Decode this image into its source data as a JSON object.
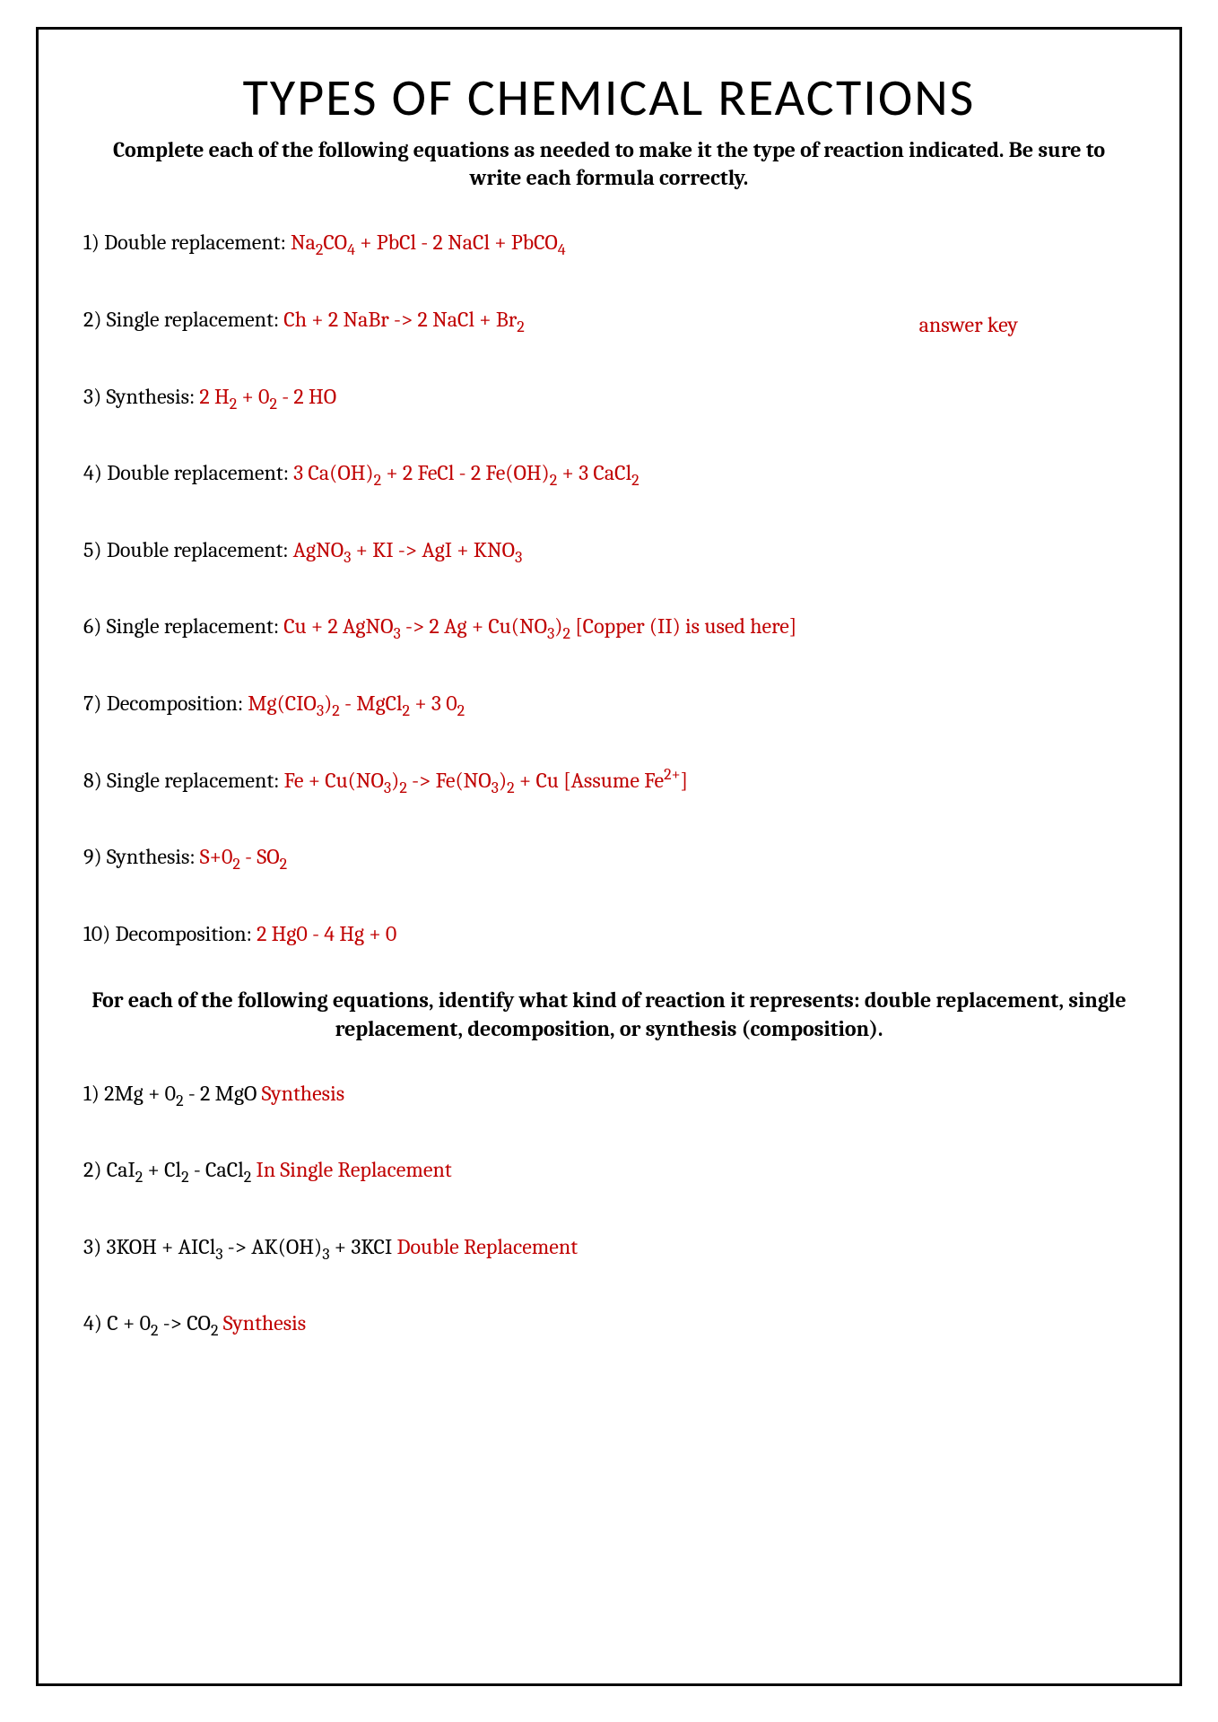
{
  "title": "TYPES OF CHEMICAL REACTIONS",
  "instructions": "Complete each of the following equations as needed to make it the type of reaction indicated.  Be sure to write each formula correctly.",
  "answer_key_label": "answer key",
  "colors": {
    "answer": "#c00000",
    "text": "#000000",
    "border": "#000000",
    "background": "#ffffff"
  },
  "section1": [
    {
      "n": "1",
      "type": "Double replacement",
      "answer": "Na₂CO₄ + PbCl - 2 NaCl + PbCO₄"
    },
    {
      "n": "2",
      "type": "Single replacement",
      "answer": "Ch + 2 NaBr -> 2 NaCl + Br₂"
    },
    {
      "n": "3",
      "type": "Synthesis",
      "answer": "2 H₂ + 0₂ - 2 HO"
    },
    {
      "n": "4",
      "type": "Double replacement",
      "answer": "3 Ca(OH)₂ + 2 FeCl - 2 Fe(OH)₂ + 3 CaCl₂"
    },
    {
      "n": "5",
      "type": "Double replacement",
      "answer": "AgNO₃ + KI -> AgI + KNO₃"
    },
    {
      "n": "6",
      "type": "Single replacement",
      "answer": "Cu + 2 AgNO₃ -> 2 Ag + Cu(NO₃)₂ [Copper (II) is used here]"
    },
    {
      "n": "7",
      "type": "Decomposition",
      "answer": "Mg(CIO₃)₂ - MgCl₂ + 3 0₂"
    },
    {
      "n": "8",
      "type": "Single replacement",
      "answer": "Fe + Cu(NO₃)₂ -> Fe(NO₃)₂ + Cu   [Assume Fe²⁺]"
    },
    {
      "n": "9",
      "type": "Synthesis",
      "answer": "S+0₂ - SO₂"
    },
    {
      "n": "10",
      "type": "Decomposition",
      "answer": "2 Hg0 - 4 Hg + 0"
    }
  ],
  "section2_header": "For each of the following equations, identify what kind of reaction it represents: double replacement, single replacement, decomposition, or synthesis (composition).",
  "section2": [
    {
      "n": "1",
      "equation": "2Mg + 0₂ - 2 MgO",
      "answer": "Synthesis"
    },
    {
      "n": "2",
      "equation": "CaI₂ + Cl₂ - CaCl₂",
      "answer": "In Single Replacement"
    },
    {
      "n": "3",
      "equation": "3KOH + AICl₃ -> AK(OH)₃ + 3KCI",
      "answer": "Double Replacement"
    },
    {
      "n": "4",
      "equation": "C + 0₂ -> CO₂",
      "answer": "Synthesis"
    }
  ]
}
